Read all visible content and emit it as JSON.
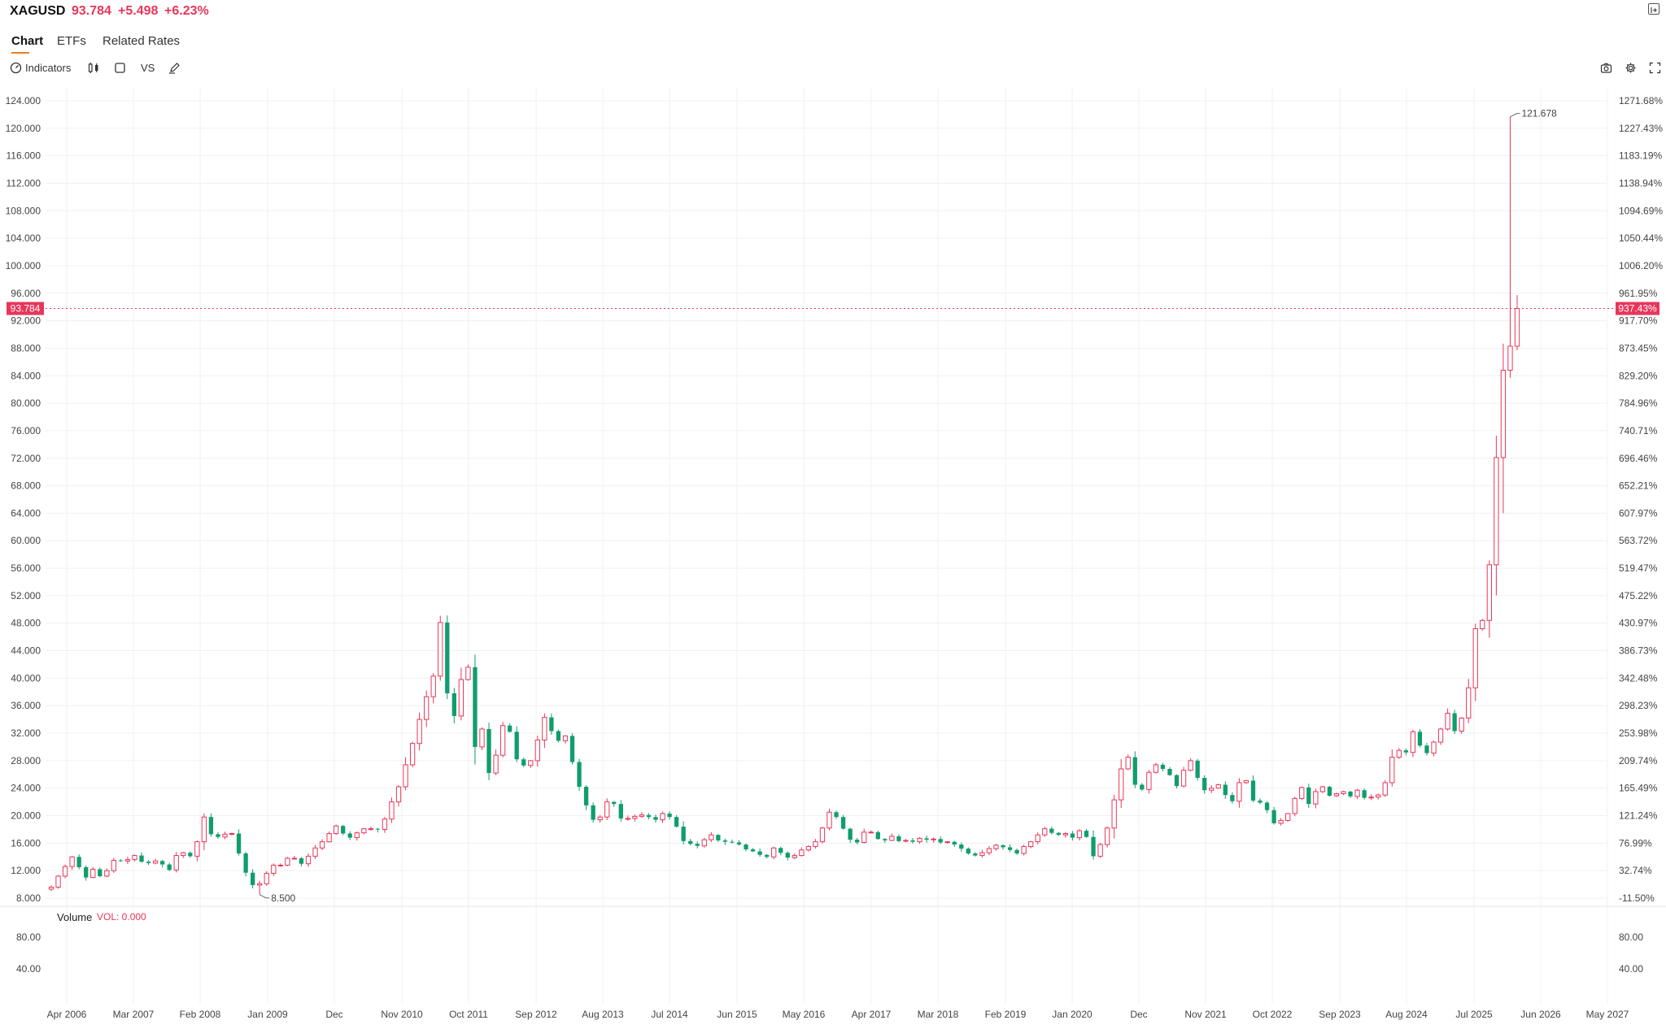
{
  "header": {
    "symbol": "XAGUSD",
    "price": "93.784",
    "change": "+5.498",
    "change_pct": "+6.23%"
  },
  "tabs": [
    {
      "label": "Chart",
      "active": true
    },
    {
      "label": "ETFs",
      "active": false
    },
    {
      "label": "Related Rates",
      "active": false
    }
  ],
  "toolbar": {
    "indicators_label": "Indicators",
    "vs_label": "VS",
    "left_icons": [
      "gauge-icon",
      "candles-icon",
      "square-icon",
      "vs-icon",
      "pen-icon"
    ],
    "right_icons": [
      "camera-icon",
      "gear-icon",
      "fullscreen-icon"
    ]
  },
  "colors": {
    "up": "#e8365a",
    "down": "#0f9d6e",
    "accent": "#f07a20",
    "grid": "#f0f0f0"
  },
  "volume": {
    "label": "Volume",
    "value_text": "VOL: 0.000",
    "ticks": [
      "80.00",
      "40.00"
    ]
  },
  "chart_data": {
    "type": "candlestick",
    "title": "",
    "price_axis": {
      "ylim": [
        6.0,
        126.0
      ],
      "ticks": [
        8,
        12,
        16,
        20,
        24,
        28,
        32,
        36,
        40,
        44,
        48,
        52,
        56,
        60,
        64,
        68,
        72,
        76,
        80,
        84,
        88,
        92,
        96,
        100,
        104,
        108,
        112,
        116,
        120,
        124
      ],
      "tick_labels": [
        "8.000",
        "12.000",
        "16.000",
        "20.000",
        "24.000",
        "28.000",
        "32.000",
        "36.000",
        "40.000",
        "44.000",
        "48.000",
        "52.000",
        "56.000",
        "60.000",
        "64.000",
        "68.000",
        "72.000",
        "76.000",
        "80.000",
        "84.000",
        "88.000",
        "92.000",
        "96.000",
        "100.000",
        "104.000",
        "108.000",
        "112.000",
        "116.000",
        "120.000",
        "124.000"
      ]
    },
    "percent_axis": {
      "tick_labels": [
        "-11.50%",
        "32.74%",
        "76.99%",
        "121.24%",
        "165.49%",
        "209.74%",
        "253.98%",
        "298.23%",
        "342.48%",
        "386.73%",
        "430.97%",
        "475.22%",
        "519.47%",
        "563.72%",
        "607.97%",
        "652.21%",
        "696.46%",
        "740.71%",
        "784.96%",
        "829.20%",
        "873.45%",
        "917.70%",
        "961.95%",
        "1006.20%",
        "1050.44%",
        "1094.69%",
        "1138.94%",
        "1183.19%",
        "1227.43%",
        "1271.68%"
      ]
    },
    "last_price": 93.784,
    "last_price_label": "93.784",
    "last_pct_label": "937.43%",
    "max_label": "121.678",
    "max_value": 121.678,
    "min_label": "8.500",
    "min_value": 8.5,
    "x_axis_labels": [
      "Apr 2006",
      "Mar 2007",
      "Feb 2008",
      "Jan 2009",
      "Dec",
      "Nov 2010",
      "Oct 2011",
      "Sep 2012",
      "Aug 2013",
      "Jul 2014",
      "Jun 2015",
      "May 2016",
      "Apr 2017",
      "Mar 2018",
      "Feb 2019",
      "Jan 2020",
      "Dec",
      "Nov 2021",
      "Oct 2022",
      "Sep 2023",
      "Aug 2024",
      "Jul 2025",
      "Jun 2026",
      "May 2027"
    ],
    "closes": [
      9.6,
      11.2,
      12.6,
      14.0,
      12.5,
      11.0,
      12.2,
      11.2,
      12.0,
      13.5,
      13.4,
      13.6,
      14.2,
      13.3,
      13.1,
      13.4,
      12.9,
      12.1,
      14.2,
      14.6,
      14.1,
      16.2,
      19.8,
      17.3,
      16.9,
      17.3,
      17.4,
      14.5,
      11.7,
      9.9,
      10.1,
      11.6,
      12.8,
      12.8,
      13.8,
      13.8,
      13.0,
      14.1,
      15.3,
      16.2,
      17.4,
      18.5,
      17.4,
      16.8,
      17.5,
      18.1,
      18.1,
      18.0,
      19.5,
      22.0,
      24.2,
      27.4,
      30.5,
      34.0,
      37.3,
      40.3,
      48.1,
      37.8,
      34.5,
      39.8,
      41.6,
      30.0,
      32.6,
      26.2,
      28.8,
      33.1,
      32.2,
      28.2,
      27.3,
      28.0,
      31.0,
      34.3,
      32.3,
      30.9,
      31.6,
      27.8,
      24.2,
      21.5,
      19.4,
      19.8,
      22.0,
      21.7,
      19.6,
      19.6,
      19.9,
      20.1,
      19.8,
      19.4,
      20.3,
      19.8,
      18.4,
      16.3,
      15.9,
      15.6,
      16.5,
      17.2,
      16.4,
      16.2,
      16.1,
      15.8,
      15.1,
      14.8,
      14.3,
      14.0,
      15.3,
      14.6,
      13.9,
      14.2,
      15.0,
      15.5,
      16.2,
      18.2,
      20.5,
      19.8,
      18.1,
      16.5,
      16.1,
      17.6,
      17.6,
      16.6,
      16.4,
      17.0,
      16.3,
      16.4,
      16.2,
      16.7,
      16.5,
      16.6,
      16.1,
      16.2,
      15.8,
      15.2,
      14.5,
      14.2,
      14.6,
      15.2,
      15.7,
      15.4,
      15.0,
      14.5,
      15.5,
      16.2,
      17.2,
      18.1,
      17.5,
      17.2,
      17.4,
      16.8,
      17.8,
      16.9,
      14.1,
      15.8,
      18.2,
      22.3,
      26.8,
      28.5,
      24.5,
      23.8,
      26.3,
      27.4,
      26.8,
      25.9,
      24.3,
      26.6,
      28.0,
      25.5,
      23.7,
      24.0,
      24.5,
      23.0,
      22.1,
      24.8,
      25.1,
      22.2,
      21.9,
      20.8,
      18.9,
      19.3,
      20.3,
      22.5,
      24.1,
      21.7,
      23.5,
      24.2,
      22.9,
      23.2,
      23.5,
      22.8,
      23.7,
      22.6,
      22.7,
      23.0,
      24.8,
      28.5,
      29.5,
      29.2,
      32.2,
      30.2,
      29.1,
      30.7,
      32.6,
      34.9,
      32.3,
      34.2,
      38.6,
      47.2,
      48.4,
      56.5,
      72.1,
      84.8,
      88.3,
      93.78
    ]
  }
}
